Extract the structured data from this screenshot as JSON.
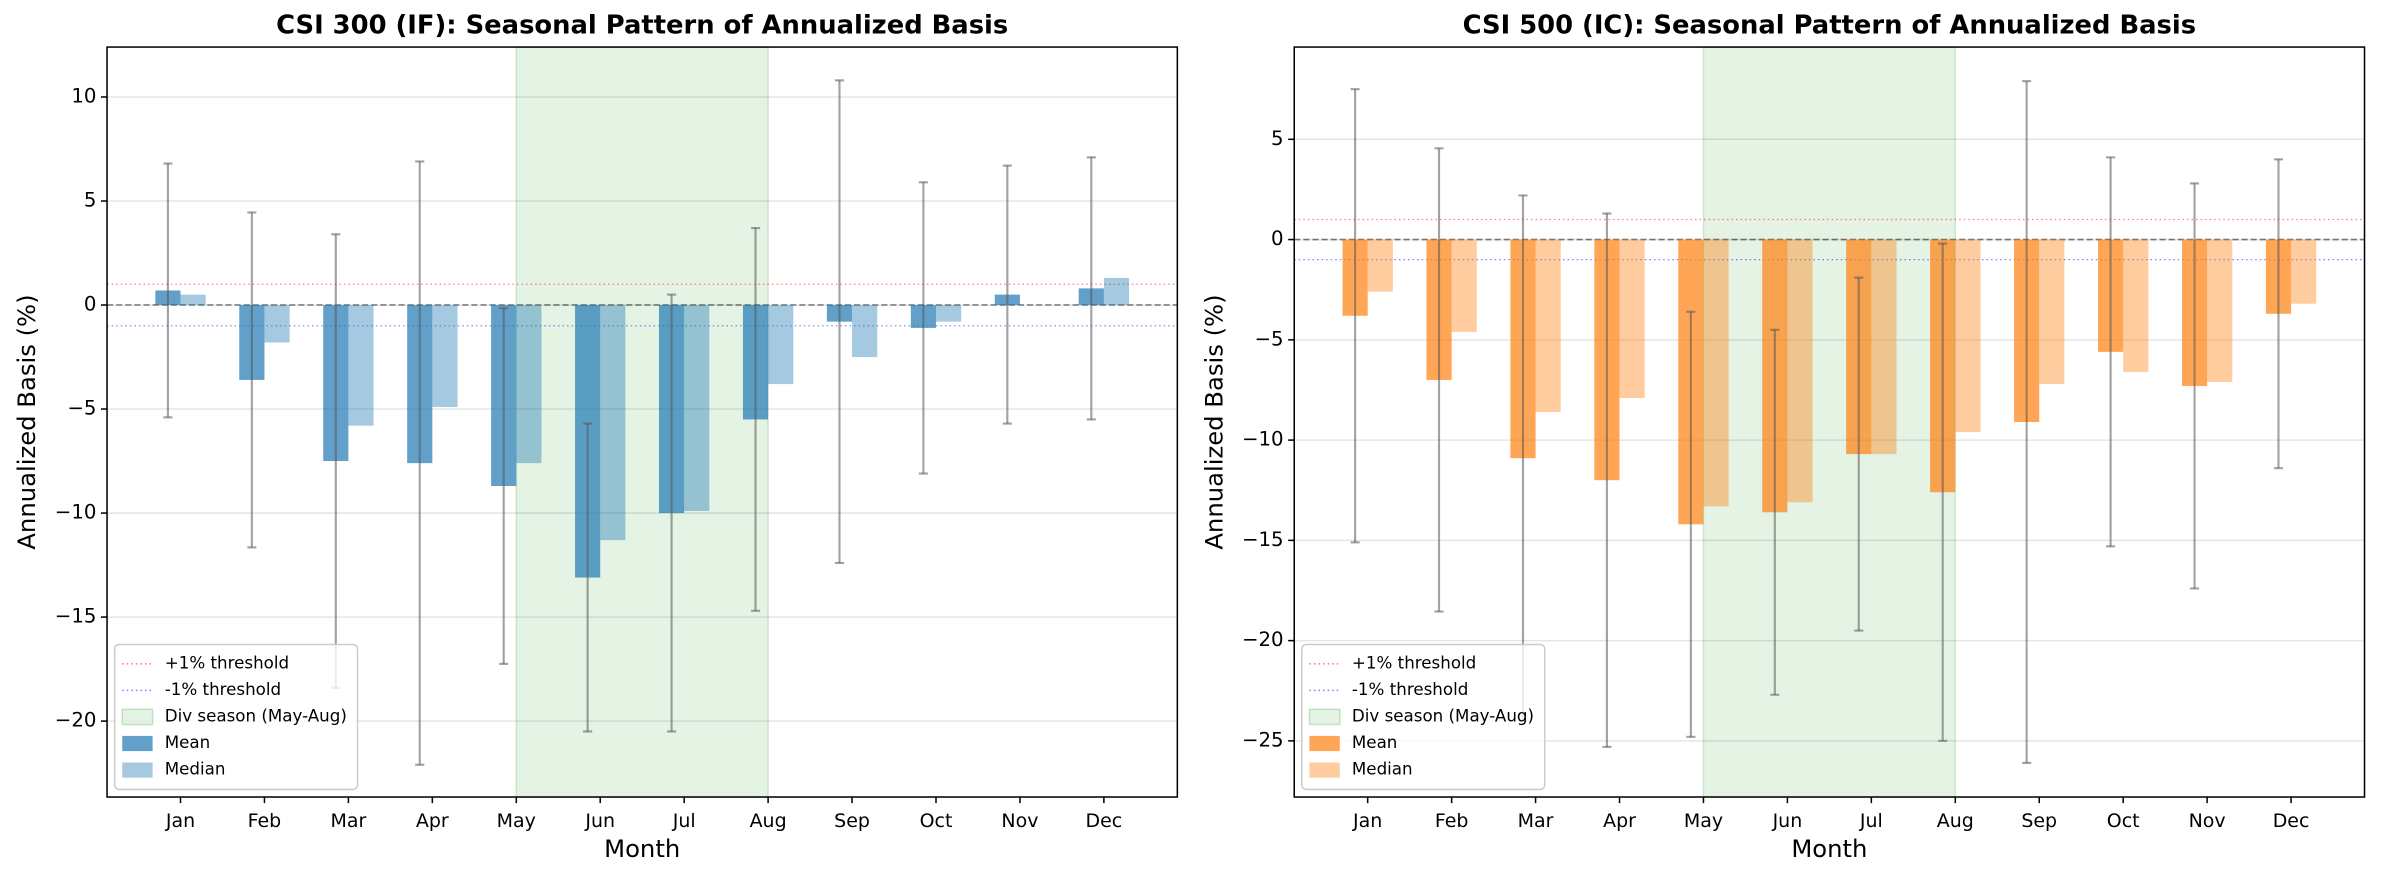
{
  "chart_data": [
    {
      "type": "bar",
      "title": "CSI 300 (IF): Seasonal Pattern of Annualized Basis",
      "x_label": "Month",
      "y_label": "Annualized Basis (%)",
      "categories": [
        "Jan",
        "Feb",
        "Mar",
        "Apr",
        "May",
        "Jun",
        "Jul",
        "Aug",
        "Sep",
        "Oct",
        "Nov",
        "Dec"
      ],
      "series": [
        {
          "name": "Mean",
          "color": "#1f77b4",
          "alpha": 0.7,
          "values": [
            0.7,
            -3.6,
            -7.5,
            -7.6,
            -8.7,
            -13.1,
            -10.0,
            -5.5,
            -0.8,
            -1.1,
            0.5,
            0.8
          ],
          "errors": [
            6.1,
            8.05,
            10.9,
            14.5,
            8.55,
            7.4,
            10.5,
            9.2,
            11.6,
            7.0,
            6.2,
            6.3
          ]
        },
        {
          "name": "Median",
          "color": "#1f77b4",
          "alpha": 0.4,
          "values": [
            0.5,
            -1.8,
            -5.8,
            -4.9,
            -7.6,
            -11.3,
            -9.9,
            -3.8,
            -2.5,
            -0.8,
            0,
            1.3
          ]
        }
      ],
      "thresholds": [
        {
          "name": "+1% threshold",
          "value": 1,
          "color": "#ff0000"
        },
        {
          "name": "-1% threshold",
          "value": -1,
          "color": "#0000ff"
        }
      ],
      "reference_line": 0,
      "span": {
        "label": "Div season (May-Aug)",
        "start": "May",
        "end": "Aug",
        "color": "#2ca02c"
      },
      "ylim": [
        -23.65,
        12.4
      ],
      "yticks": [
        {
          "value": -20,
          "label": "−20"
        },
        {
          "value": -15,
          "label": "−15"
        },
        {
          "value": -10,
          "label": "−10"
        },
        {
          "value": -5,
          "label": "−5"
        },
        0,
        5,
        10
      ],
      "grid": true,
      "legend": "lower left"
    },
    {
      "type": "bar",
      "title": "CSI 500 (IC): Seasonal Pattern of Annualized Basis",
      "x_label": "Month",
      "y_label": "Annualized Basis (%)",
      "categories": [
        "Jan",
        "Feb",
        "Mar",
        "Apr",
        "May",
        "Jun",
        "Jul",
        "Aug",
        "Sep",
        "Oct",
        "Nov",
        "Dec"
      ],
      "series": [
        {
          "name": "Mean",
          "color": "#ff7f0e",
          "alpha": 0.7,
          "values": [
            -3.8,
            -7.0,
            -10.9,
            -12.0,
            -14.2,
            -13.6,
            -10.7,
            -12.6,
            -9.1,
            -5.6,
            -7.3,
            -3.7
          ],
          "errors": [
            11.3,
            11.55,
            13.1,
            13.3,
            10.6,
            9.1,
            8.8,
            12.4,
            17.0,
            9.7,
            10.1,
            7.7
          ]
        },
        {
          "name": "Median",
          "color": "#ff7f0e",
          "alpha": 0.4,
          "values": [
            -2.6,
            -4.6,
            -8.6,
            -7.9,
            -13.3,
            -13.1,
            -10.7,
            -9.6,
            -7.2,
            -6.6,
            -7.1,
            -3.2
          ]
        }
      ],
      "thresholds": [
        {
          "name": "+1% threshold",
          "value": 1,
          "color": "#ff0000"
        },
        {
          "name": "-1% threshold",
          "value": -1,
          "color": "#0000ff"
        }
      ],
      "reference_line": 0,
      "span": {
        "label": "Div season (May-Aug)",
        "start": "May",
        "end": "Aug",
        "color": "#2ca02c"
      },
      "ylim": [
        -27.8,
        9.6
      ],
      "yticks": [
        {
          "value": -25,
          "label": "−25"
        },
        {
          "value": -20,
          "label": "−20"
        },
        {
          "value": -15,
          "label": "−15"
        },
        {
          "value": -10,
          "label": "−10"
        },
        {
          "value": -5,
          "label": "−5"
        },
        0,
        5
      ],
      "grid": true,
      "legend": "lower left"
    }
  ]
}
